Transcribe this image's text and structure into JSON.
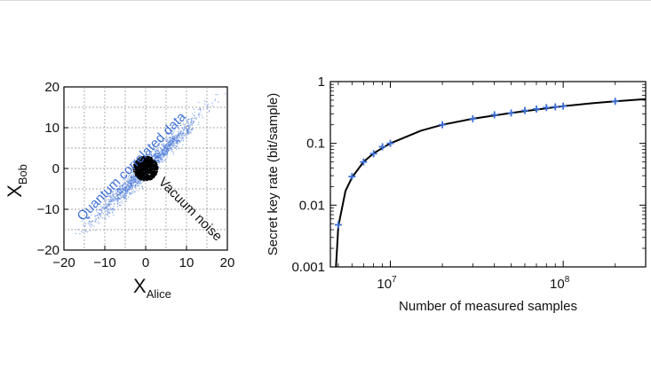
{
  "chart_data": [
    {
      "type": "scatter",
      "xlabel": "X",
      "xlabel_sub": "Alice",
      "ylabel": "X",
      "ylabel_sub": "Bob",
      "xlim": [
        -20,
        20
      ],
      "ylim": [
        -20,
        20
      ],
      "xticks": [
        "−20",
        "−10",
        "0",
        "10",
        "20"
      ],
      "yticks": [
        "−20",
        "−10",
        "0",
        "10",
        "20"
      ],
      "grid": true,
      "annotations": [
        {
          "text": "Quantum correlated data",
          "color": "#3d6fd6"
        },
        {
          "text": "Vacuum noise",
          "color": "#111111"
        }
      ],
      "series": [
        {
          "color": "#3d6fd6",
          "trend": {
            "slope": 1,
            "x_range": [
              -17,
              19
            ]
          }
        },
        {
          "color": "#000000",
          "center": [
            0,
            0
          ],
          "radius": 3
        }
      ]
    },
    {
      "type": "line",
      "xlabel": "Number of measured samples",
      "ylabel": "Secret key rate (bit/sample)",
      "xscale": "log",
      "yscale": "log",
      "xlim": [
        4500000,
        300000000
      ],
      "ylim": [
        0.001,
        1
      ],
      "xticks": [
        {
          "value": 10000000,
          "base": "10",
          "exp": "7"
        },
        {
          "value": 100000000,
          "base": "10",
          "exp": "8"
        }
      ],
      "yticks": [
        {
          "value": 0.001,
          "label": "0.001"
        },
        {
          "value": 0.01,
          "label": "0.01"
        },
        {
          "value": 0.1,
          "label": "0.1"
        },
        {
          "value": 1,
          "label": "1"
        }
      ],
      "grid": false,
      "series": [
        {
          "kind": "curve",
          "color": "#000000",
          "x": [
            4850000,
            5000000,
            5500000,
            6000000,
            7000000,
            8000000,
            10000000,
            15000000,
            20000000,
            30000000,
            50000000,
            80000000,
            100000000,
            150000000,
            200000000,
            300000000
          ],
          "y": [
            0.001,
            0.0045,
            0.017,
            0.028,
            0.05,
            0.069,
            0.1,
            0.16,
            0.2,
            0.25,
            0.31,
            0.37,
            0.4,
            0.45,
            0.48,
            0.52
          ]
        },
        {
          "kind": "markers",
          "color": "#3d6fd6",
          "x": [
            5000000,
            6000000,
            7000000,
            8000000,
            9000000,
            10000000,
            20000000,
            30000000,
            40000000,
            50000000,
            60000000,
            70000000,
            80000000,
            90000000,
            100000000,
            200000000
          ],
          "y": [
            0.0048,
            0.029,
            0.05,
            0.068,
            0.088,
            0.1,
            0.2,
            0.25,
            0.29,
            0.31,
            0.34,
            0.36,
            0.38,
            0.39,
            0.4,
            0.48
          ]
        }
      ]
    }
  ]
}
